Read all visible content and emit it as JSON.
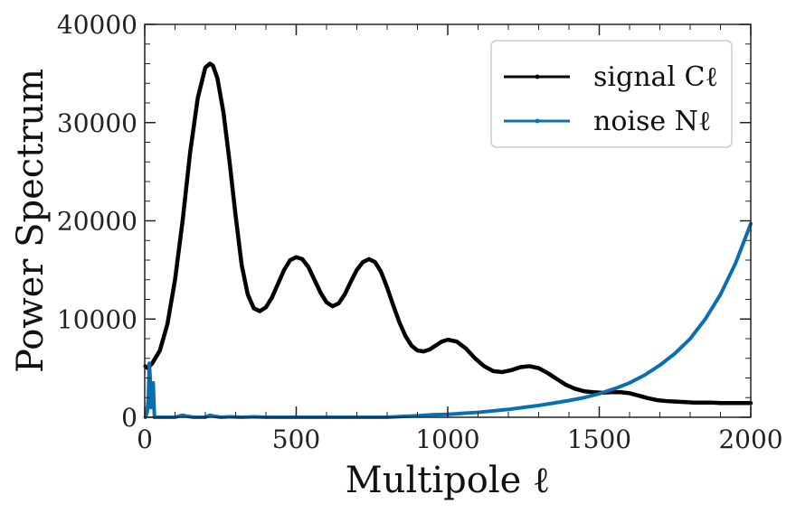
{
  "chart_data": {
    "type": "line",
    "xlabel": "Multipole ℓ",
    "ylabel": "Power Spectrum",
    "xlim": [
      0,
      2000
    ],
    "ylim": [
      0,
      40000
    ],
    "xticks": [
      0,
      500,
      1000,
      1500,
      2000
    ],
    "xtick_labels": [
      "0",
      "500",
      "1000",
      "1500",
      "2000"
    ],
    "yticks": [
      0,
      10000,
      20000,
      30000,
      40000
    ],
    "ytick_labels": [
      "0",
      "10000",
      "20000",
      "30000",
      "40000"
    ],
    "grid": false,
    "legend_position": "top-right",
    "series": [
      {
        "name": "signal Cℓ",
        "color": "#000000",
        "x": [
          2,
          10,
          25,
          50,
          75,
          100,
          125,
          150,
          175,
          200,
          215,
          225,
          240,
          260,
          280,
          300,
          320,
          340,
          360,
          380,
          400,
          420,
          440,
          460,
          480,
          500,
          520,
          540,
          560,
          580,
          600,
          620,
          640,
          660,
          680,
          700,
          720,
          740,
          760,
          780,
          800,
          820,
          840,
          860,
          880,
          900,
          920,
          940,
          960,
          980,
          1000,
          1030,
          1060,
          1090,
          1120,
          1150,
          1180,
          1210,
          1240,
          1270,
          1300,
          1330,
          1360,
          1390,
          1420,
          1450,
          1480,
          1510,
          1540,
          1570,
          1600,
          1630,
          1660,
          1690,
          1720,
          1750,
          1780,
          1810,
          1840,
          1870,
          1900,
          1930,
          1960,
          2000
        ],
        "values": [
          5200,
          5000,
          5500,
          6800,
          9500,
          14000,
          20000,
          27000,
          32500,
          35600,
          36000,
          35800,
          34500,
          31000,
          26000,
          20500,
          15500,
          12500,
          11100,
          10800,
          11200,
          12200,
          13600,
          15000,
          16000,
          16300,
          16100,
          15300,
          14000,
          12700,
          11700,
          11300,
          11600,
          12500,
          13800,
          15000,
          15800,
          16100,
          15800,
          14800,
          13200,
          11400,
          9700,
          8300,
          7300,
          6800,
          6700,
          6900,
          7300,
          7700,
          7900,
          7700,
          7000,
          6000,
          5200,
          4700,
          4600,
          4800,
          5100,
          5200,
          5000,
          4500,
          3900,
          3300,
          2900,
          2650,
          2550,
          2500,
          2550,
          2550,
          2450,
          2200,
          1950,
          1750,
          1650,
          1600,
          1550,
          1500,
          1500,
          1500,
          1450,
          1450,
          1450,
          1450
        ]
      },
      {
        "name": "noise Nℓ",
        "color": "#0a6fb0",
        "x": [
          2,
          8,
          12,
          15,
          18,
          20,
          22,
          25,
          28,
          32,
          40,
          60,
          100,
          125,
          140,
          160,
          200,
          215,
          230,
          250,
          280,
          320,
          360,
          400,
          450,
          500,
          550,
          600,
          650,
          700,
          750,
          800,
          850,
          900,
          950,
          1000,
          1050,
          1100,
          1150,
          1200,
          1250,
          1300,
          1350,
          1400,
          1450,
          1500,
          1550,
          1600,
          1650,
          1700,
          1750,
          1800,
          1850,
          1900,
          1950,
          2000
        ],
        "values": [
          0,
          500,
          2000,
          5500,
          4000,
          1000,
          3000,
          1500,
          3500,
          0,
          0,
          0,
          0,
          200,
          100,
          0,
          0,
          200,
          100,
          0,
          50,
          0,
          50,
          0,
          0,
          0,
          0,
          0,
          0,
          0,
          0,
          0,
          80,
          150,
          250,
          300,
          400,
          500,
          650,
          800,
          1000,
          1200,
          1450,
          1700,
          2000,
          2400,
          2900,
          3500,
          4300,
          5300,
          6500,
          8000,
          10000,
          12500,
          15700,
          19700
        ]
      }
    ]
  }
}
